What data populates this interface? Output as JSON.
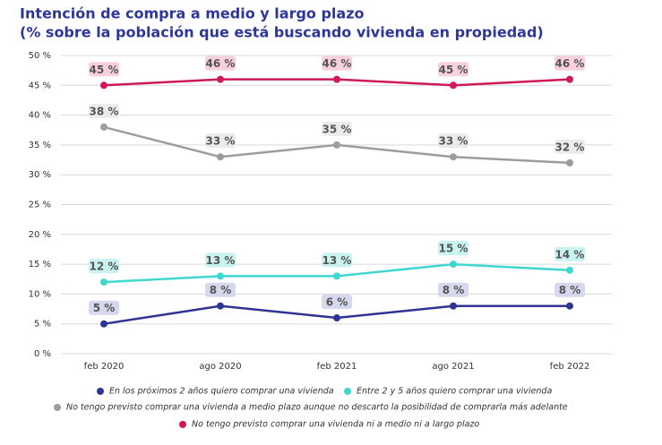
{
  "chart_data": {
    "type": "line",
    "title": "Intención de compra a medio y largo plazo",
    "subtitle": "(% sobre la población que está buscando vivienda en propiedad)",
    "categories": [
      "feb 2020",
      "ago 2020",
      "feb 2021",
      "ago 2021",
      "feb 2022"
    ],
    "series": [
      {
        "name": "En los próximos 2 años quiero comprar una vivienda",
        "color": "#2e3394",
        "label_fill": "#d6d8ee",
        "values": [
          5,
          8,
          6,
          8,
          8
        ],
        "value_labels": [
          "5 %",
          "8 %",
          "6 %",
          "8 %",
          "8 %"
        ]
      },
      {
        "name": "Entre 2 y 5 años quiero comprar una vivienda",
        "color": "#3fd7d0",
        "label_fill": "#c9f3f0",
        "values": [
          12,
          13,
          13,
          15,
          14
        ],
        "value_labels": [
          "12 %",
          "13 %",
          "13 %",
          "15 %",
          "14 %"
        ]
      },
      {
        "name": "No tengo previsto comprar una vivienda a medio plazo aunque no descarto la posibilidad de comprarla más adelante",
        "color": "#9d9d9d",
        "label_fill": "#ebebeb",
        "values": [
          38,
          33,
          35,
          33,
          32
        ],
        "value_labels": [
          "38 %",
          "33 %",
          "35 %",
          "33 %",
          "32 %"
        ]
      },
      {
        "name": "No tengo previsto comprar una vivienda ni a medio ni a largo plazo",
        "color": "#d0175c",
        "label_fill": "#f7d0dc",
        "values": [
          45,
          46,
          46,
          45,
          46
        ],
        "value_labels": [
          "45 %",
          "46 %",
          "46 %",
          "45 %",
          "46 %"
        ]
      }
    ],
    "ylim": [
      0,
      50
    ],
    "yticks": [
      {
        "value": 0,
        "label": "0 %"
      },
      {
        "value": 5,
        "label": "5 %"
      },
      {
        "value": 10,
        "label": "10 %"
      },
      {
        "value": 15,
        "label": "15 %"
      },
      {
        "value": 20,
        "label": "20 %"
      },
      {
        "value": 25,
        "label": "25 %"
      },
      {
        "value": 30,
        "label": "30 %"
      },
      {
        "value": 35,
        "label": "35 %"
      },
      {
        "value": 40,
        "label": "40 %"
      },
      {
        "value": 45,
        "label": "45 %"
      },
      {
        "value": 50,
        "label": "50 %"
      }
    ],
    "grid": true
  }
}
